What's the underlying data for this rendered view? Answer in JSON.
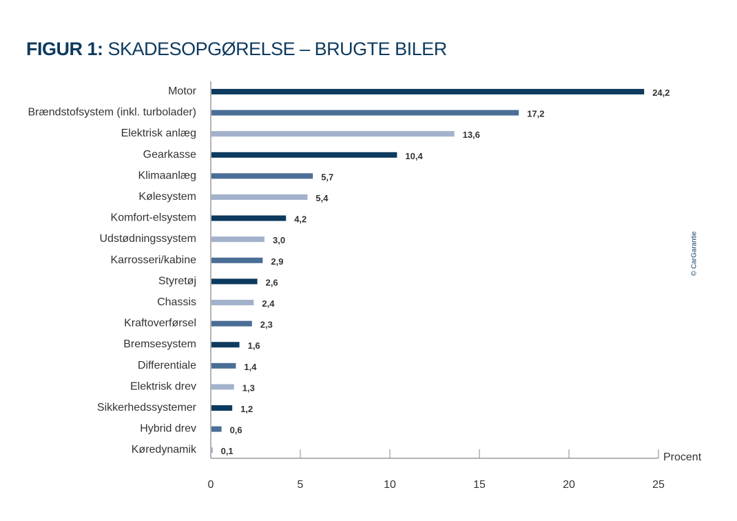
{
  "title_prefix": "FIGUR 1:",
  "title_main": "SKADESOPGØRELSE – BRUGTE BILER",
  "copyright": "© CarGarantie",
  "colors": {
    "dark": "#0d3a5e",
    "medium": "#4a6e96",
    "light": "#a3b2cb",
    "axis": "#888888",
    "text": "#333333"
  },
  "chart_data": {
    "type": "bar",
    "orientation": "horizontal",
    "title": "FIGUR 1: SKADESOPGØRELSE – BRUGTE BILER",
    "xlabel": "Procent",
    "xlim": [
      0,
      25
    ],
    "xticks": [
      "0",
      "5",
      "10",
      "15",
      "20",
      "25"
    ],
    "categories": [
      "Motor",
      "Brændstofsystem (inkl. turbolader)",
      "Elektrisk anlæg",
      "Gearkasse",
      "Klimaanlæg",
      "Kølesystem",
      "Komfort-elsystem",
      "Udstødningssystem",
      "Karrosseri/kabine",
      "Styretøj",
      "Chassis",
      "Kraftoverførsel",
      "Bremsesystem",
      "Differentiale",
      "Elektrisk drev",
      "Sikkerhedssystemer",
      "Hybrid drev",
      "Køredynamik"
    ],
    "values": [
      24.2,
      17.2,
      13.6,
      10.4,
      5.7,
      5.4,
      4.2,
      3.0,
      2.9,
      2.6,
      2.4,
      2.3,
      1.6,
      1.4,
      1.3,
      1.2,
      0.6,
      0.1
    ],
    "value_labels": [
      "24,2",
      "17,2",
      "13,6",
      "10,4",
      "5,7",
      "5,4",
      "4,2",
      "3,0",
      "2,9",
      "2,6",
      "2,4",
      "2,3",
      "1,6",
      "1,4",
      "1,3",
      "1,2",
      "0,6",
      "0,1"
    ],
    "bar_shades": [
      "dark",
      "medium",
      "light",
      "dark",
      "medium",
      "light",
      "dark",
      "light",
      "medium",
      "dark",
      "light",
      "medium",
      "dark",
      "medium",
      "light",
      "dark",
      "medium",
      "light"
    ],
    "grid": false
  }
}
